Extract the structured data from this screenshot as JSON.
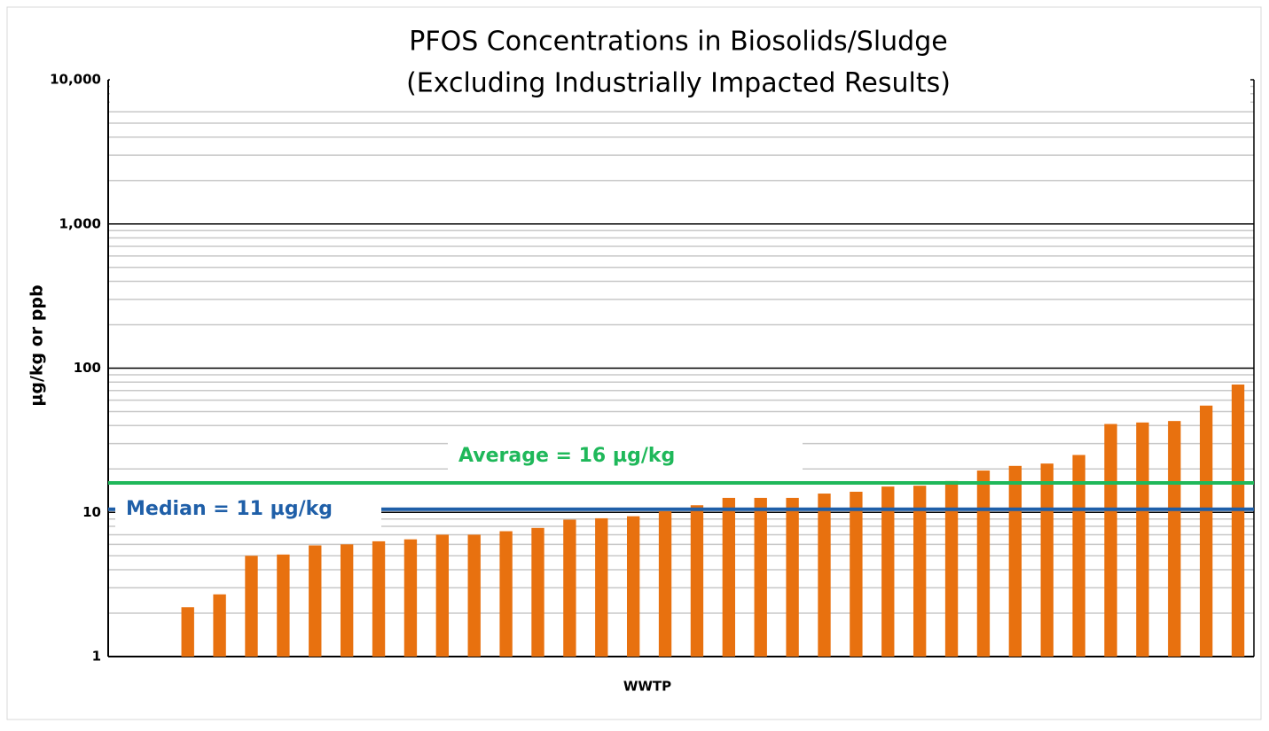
{
  "chart_data": {
    "type": "bar",
    "title": "PFOS Concentrations in Biosolids/Sludge",
    "subtitle": "(Excluding Industrially Impacted Results)",
    "x_label": "WWTP",
    "y_label": "µg/kg or ppb",
    "categories": [
      null,
      null,
      null,
      null,
      null,
      null,
      null,
      null,
      null,
      null,
      null,
      null,
      null,
      null,
      null,
      null,
      null,
      null,
      null,
      null,
      null,
      null,
      null,
      null,
      null,
      null,
      null,
      null,
      null,
      null,
      null,
      null,
      null,
      null,
      null,
      null
    ],
    "values": [
      null,
      null,
      2.2,
      2.7,
      5.0,
      5.1,
      5.9,
      6.0,
      6.3,
      6.5,
      7.0,
      7.0,
      7.4,
      7.8,
      8.9,
      9.1,
      9.4,
      10.2,
      11.2,
      12.6,
      12.6,
      12.6,
      13.5,
      13.9,
      15.1,
      15.3,
      16.5,
      19.5,
      21,
      21.8,
      25,
      41,
      42,
      43,
      55,
      77
    ],
    "color": "#e8710f",
    "log_scale": true,
    "ylim": [
      1,
      10000
    ],
    "yticks": [
      1,
      10,
      100,
      {
        "value": 1000,
        "label": "1,000"
      },
      {
        "value": 10000,
        "label": "10,000"
      }
    ],
    "minor_yticks": [
      2,
      3,
      4,
      5,
      6,
      7,
      8,
      9,
      20,
      30,
      40,
      50,
      60,
      70,
      80,
      90,
      200,
      300,
      400,
      500,
      600,
      700,
      800,
      900,
      2000,
      3000,
      4000,
      5000,
      6000,
      7000,
      8000,
      9000
    ],
    "grid": true,
    "reference_lines": [
      {
        "label": "Average = 16 µg/kg",
        "value": 16,
        "color": "#1fb85a"
      },
      {
        "label": "Median = 11 µg/kg",
        "value": 10.5,
        "color": "#1f5fa8"
      }
    ]
  }
}
